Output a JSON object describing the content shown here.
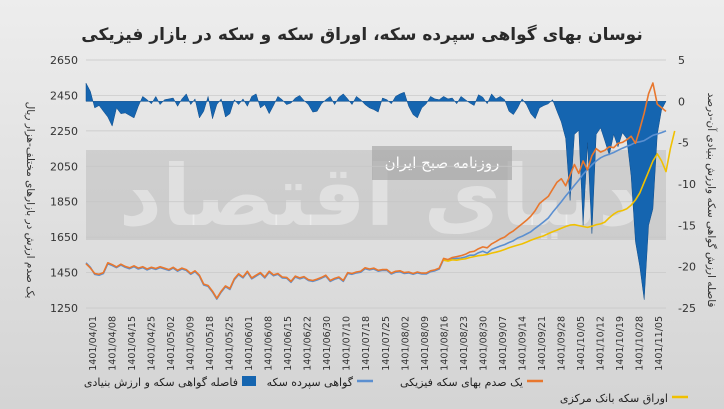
{
  "chart_data": {
    "type": "line",
    "title": "نوسان بهای گواهی سپرده سکه، اوراق سکه و سکه در بازار فیزیکی",
    "ylabel_left": "یک صدم ارزش در بازارهای مختلف-هزار ریال",
    "ylabel_right": "فاصله ارزش گواهی سکه وارزش بنیادی آن-درصد",
    "watermark_main": "دنیای اقتصاد",
    "watermark_sub": "روزنامه صبح ایران",
    "y_left": {
      "min": 1250,
      "max": 2650,
      "ticks": [
        "2650",
        "2450",
        "2250",
        "2050",
        "1850",
        "1650",
        "1450",
        "1250"
      ]
    },
    "y_right": {
      "min": -25,
      "max": 5,
      "ticks": [
        "5",
        "0",
        "-5",
        "-10",
        "-15",
        "-20",
        "-25"
      ]
    },
    "x_labels": [
      "1401/04/01",
      "1401/04/08",
      "1401/04/15",
      "1401/04/25",
      "1401/05/02",
      "1401/05/09",
      "1401/05/18",
      "1401/05/25",
      "1401/06/01",
      "1401/06/08",
      "1401/06/15",
      "1401/06/22",
      "1401/06/30",
      "1401/07/10",
      "1401/07/18",
      "1401/07/25",
      "1401/08/02",
      "1401/08/09",
      "1401/08/16",
      "1401/08/23",
      "1401/08/30",
      "1401/09/07",
      "1401/09/14",
      "1401/09/21",
      "1401/09/28",
      "1401/10/05",
      "1401/10/12",
      "1401/10/19",
      "1401/10/28",
      "1401/11/05"
    ],
    "legend": [
      "فاصله گواهی سکه و ارزش بنیادی",
      "گواهی سپرده سکه",
      "یک صدم بهای سکه فیزیکی",
      "اوراق سکه بانک مرکزی"
    ],
    "colors": {
      "gap": "#1565b0",
      "certificate": "#5b8fd0",
      "physical": "#e8772e",
      "bond": "#f0c000"
    },
    "series": [
      {
        "name": "گواهی سپرده سکه",
        "axis": "left",
        "values": [
          1505,
          1480,
          1440,
          1435,
          1445,
          1500,
          1490,
          1478,
          1492,
          1480,
          1472,
          1483,
          1470,
          1478,
          1465,
          1475,
          1468,
          1478,
          1470,
          1462,
          1475,
          1458,
          1470,
          1462,
          1440,
          1455,
          1430,
          1380,
          1372,
          1340,
          1300,
          1340,
          1370,
          1355,
          1410,
          1438,
          1420,
          1452,
          1415,
          1430,
          1445,
          1420,
          1452,
          1432,
          1440,
          1420,
          1418,
          1395,
          1425,
          1415,
          1422,
          1405,
          1400,
          1408,
          1418,
          1430,
          1400,
          1412,
          1420,
          1400,
          1445,
          1440,
          1448,
          1452,
          1472,
          1465,
          1470,
          1458,
          1462,
          1462,
          1442,
          1452,
          1455,
          1445,
          1448,
          1440,
          1448,
          1442,
          1442,
          1455,
          1460,
          1470,
          1525,
          1518,
          1528,
          1530,
          1532,
          1538,
          1548,
          1548,
          1562,
          1570,
          1560,
          1580,
          1590,
          1600,
          1608,
          1620,
          1630,
          1645,
          1655,
          1668,
          1680,
          1700,
          1718,
          1738,
          1758,
          1790,
          1820,
          1850,
          1882,
          1912,
          1942,
          1972,
          2005,
          2032,
          2058,
          2080,
          2098,
          2110,
          2118,
          2128,
          2140,
          2152,
          2162,
          2172,
          2185,
          2188,
          2195,
          2210,
          2225,
          2232,
          2240,
          2250
        ]
      },
      {
        "name": "یک صدم بهای سکه فیزیکی",
        "axis": "left",
        "values": [
          1500,
          1475,
          1445,
          1440,
          1450,
          1505,
          1495,
          1482,
          1497,
          1485,
          1477,
          1488,
          1475,
          1483,
          1470,
          1480,
          1473,
          1483,
          1475,
          1467,
          1480,
          1463,
          1475,
          1467,
          1445,
          1460,
          1435,
          1385,
          1377,
          1345,
          1305,
          1345,
          1375,
          1360,
          1415,
          1443,
          1425,
          1457,
          1420,
          1435,
          1450,
          1425,
          1457,
          1437,
          1445,
          1425,
          1423,
          1400,
          1430,
          1420,
          1427,
          1410,
          1405,
          1413,
          1423,
          1435,
          1405,
          1417,
          1425,
          1405,
          1450,
          1445,
          1453,
          1457,
          1477,
          1470,
          1475,
          1463,
          1467,
          1467,
          1447,
          1457,
          1460,
          1450,
          1453,
          1445,
          1453,
          1447,
          1447,
          1460,
          1465,
          1475,
          1530,
          1523,
          1535,
          1540,
          1545,
          1553,
          1566,
          1570,
          1585,
          1595,
          1590,
          1612,
          1625,
          1640,
          1650,
          1670,
          1685,
          1705,
          1725,
          1745,
          1768,
          1800,
          1840,
          1860,
          1880,
          1920,
          1960,
          1980,
          1940,
          2000,
          2060,
          2010,
          2080,
          2030,
          2110,
          2150,
          2130,
          2140,
          2160,
          2155,
          2180,
          2185,
          2200,
          2220,
          2180,
          2260,
          2350,
          2460,
          2520,
          2400,
          2380,
          2360
        ]
      },
      {
        "name": "اوراق سکه بانک مرکزی",
        "axis": "left",
        "values": [
          null,
          null,
          null,
          null,
          null,
          null,
          null,
          null,
          null,
          null,
          null,
          null,
          null,
          null,
          null,
          null,
          null,
          null,
          null,
          null,
          null,
          null,
          null,
          null,
          null,
          null,
          null,
          null,
          null,
          null,
          null,
          null,
          null,
          null,
          null,
          null,
          null,
          null,
          null,
          null,
          null,
          null,
          null,
          null,
          null,
          null,
          null,
          null,
          null,
          null,
          null,
          null,
          null,
          null,
          null,
          null,
          null,
          null,
          null,
          null,
          null,
          null,
          null,
          null,
          null,
          null,
          null,
          null,
          null,
          null,
          null,
          null,
          null,
          null,
          null,
          null,
          null,
          null,
          null,
          null,
          null,
          null,
          1520,
          1515,
          1522,
          1520,
          1525,
          1528,
          1535,
          1540,
          1545,
          1548,
          1552,
          1560,
          1565,
          1572,
          1580,
          1590,
          1598,
          1605,
          1612,
          1622,
          1632,
          1642,
          1650,
          1658,
          1670,
          1680,
          1690,
          1700,
          1710,
          1718,
          1720,
          1715,
          1710,
          1705,
          1712,
          1720,
          1725,
          1735,
          1760,
          1780,
          1795,
          1800,
          1810,
          1830,
          1860,
          1900,
          1960,
          2020,
          2080,
          2120,
          2080,
          2020,
          2150,
          2250
        ]
      },
      {
        "name": "فاصله گواهی سکه و ارزش بنیادی",
        "axis": "right",
        "type": "area",
        "values": [
          2.2,
          1.2,
          -0.8,
          -0.5,
          -1.2,
          -1.9,
          -3.0,
          -0.8,
          -1.5,
          -1.4,
          -1.7,
          -2.0,
          -0.6,
          0.6,
          0.2,
          -0.3,
          0.6,
          -0.4,
          0.2,
          0.3,
          0.4,
          -0.6,
          0.3,
          0.9,
          -0.4,
          0.3,
          -2.0,
          -1.2,
          0.6,
          -2.1,
          -0.4,
          0.3,
          -1.9,
          -1.5,
          0.2,
          -0.4,
          0.3,
          -0.6,
          0.6,
          0.9,
          -0.8,
          -0.4,
          -1.5,
          -0.5,
          0.6,
          0.2,
          -0.4,
          -0.2,
          0.4,
          0.7,
          0.1,
          -0.4,
          -1.3,
          -1.2,
          -0.3,
          0.2,
          0.6,
          -0.4,
          0.5,
          0.9,
          0.3,
          -0.4,
          0.6,
          0.2,
          -0.4,
          -0.8,
          -1.0,
          -1.3,
          0.4,
          0.2,
          -0.3,
          0.6,
          0.9,
          1.1,
          -0.6,
          -1.6,
          -2.0,
          -0.8,
          -0.3,
          0.6,
          0.3,
          0.2,
          0.6,
          0.3,
          0.4,
          -0.3,
          0.6,
          0.2,
          -0.2,
          -0.5,
          0.8,
          0.5,
          -0.3,
          0.9,
          0.3,
          0.6,
          0.2,
          -1.2,
          -1.6,
          -0.8,
          0.3,
          -0.4,
          -1.5,
          -2.1,
          -0.8,
          -0.5,
          -0.3,
          0.2,
          -1.2,
          -2.5,
          -4.5,
          -12.0,
          -4.0,
          -3.5,
          -15.0,
          -5.0,
          -16.0,
          -4.0,
          -3.2,
          -4.8,
          -6.5,
          -4.0,
          -5.5,
          -3.8,
          -4.5,
          -9.0,
          -17.0,
          -20.0,
          -24.0,
          -15.0,
          -13.0,
          -4.0,
          -1.0,
          0.0
        ]
      }
    ]
  }
}
